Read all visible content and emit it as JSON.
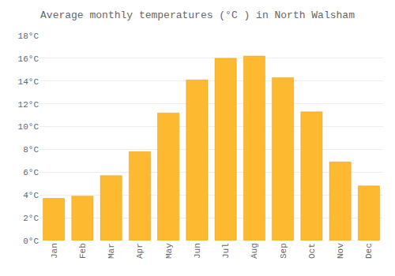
{
  "chart_data": {
    "type": "bar",
    "title": "Average monthly temperatures (°C ) in North Walsham",
    "categories": [
      "Jan",
      "Feb",
      "Mar",
      "Apr",
      "May",
      "Jun",
      "Jul",
      "Aug",
      "Sep",
      "Oct",
      "Nov",
      "Dec"
    ],
    "values": [
      3.7,
      3.9,
      5.7,
      7.8,
      11.2,
      14.1,
      16.0,
      16.2,
      14.3,
      11.3,
      6.9,
      4.8
    ],
    "color": "#FDB930",
    "ylim": [
      0,
      18
    ],
    "yticks": [
      {
        "value": 0,
        "label": "0°C"
      },
      {
        "value": 2,
        "label": "2°C"
      },
      {
        "value": 4,
        "label": "4°C"
      },
      {
        "value": 6,
        "label": "6°C"
      },
      {
        "value": 8,
        "label": "8°C"
      },
      {
        "value": 10,
        "label": "10°C"
      },
      {
        "value": 12,
        "label": "12°C"
      },
      {
        "value": 14,
        "label": "14°C"
      },
      {
        "value": 16,
        "label": "16°C"
      },
      {
        "value": 18,
        "label": "18°C"
      }
    ],
    "grid": true
  }
}
